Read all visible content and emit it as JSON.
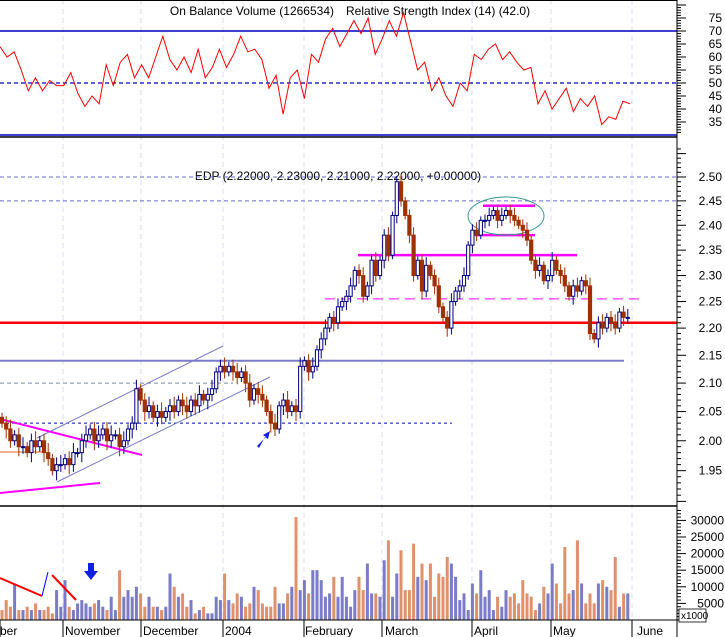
{
  "chart_data": [
    {
      "type": "line",
      "panel": "indicator",
      "titles": [
        "On Balance Volume (1266534)",
        "Relative Strength Index (14) (42.0)"
      ],
      "ylim": [
        30,
        80
      ],
      "yticks": [
        35,
        40,
        45,
        50,
        55,
        60,
        65,
        70,
        75
      ],
      "reference_lines": [
        {
          "value": 70,
          "style": "solid"
        },
        {
          "value": 50,
          "style": "dashed"
        },
        {
          "value": 30,
          "style": "solid"
        }
      ],
      "series": [
        {
          "color": "#ff0000",
          "values": [
            64,
            60,
            62,
            55,
            47,
            52,
            47,
            51,
            49,
            49,
            54,
            46,
            41,
            45,
            42,
            57,
            49,
            58,
            61,
            52,
            57,
            52,
            60,
            68,
            59,
            55,
            60,
            54,
            63,
            52,
            56,
            63,
            56,
            61,
            68,
            62,
            63,
            59,
            48,
            53,
            38,
            52,
            55,
            44,
            61,
            58,
            67,
            71,
            64,
            69,
            74,
            69,
            75,
            61,
            67,
            74,
            68,
            77,
            66,
            55,
            58,
            47,
            52,
            45,
            41,
            50,
            47,
            61,
            59,
            63,
            65,
            59,
            62,
            58,
            55,
            56,
            42,
            47,
            40,
            44,
            48,
            39,
            44,
            41,
            45,
            34,
            37,
            36,
            43,
            42
          ]
        }
      ]
    },
    {
      "type": "candlestick",
      "panel": "price",
      "title": "EDP (2.22000, 2.23000, 2.21000, 2.22000, +0.00000)",
      "y_scale": "log",
      "ylim": [
        1.9,
        2.55
      ],
      "yticks": [
        "1.95",
        "2.00",
        "2.05",
        "2.10",
        "2.15",
        "2.20",
        "2.25",
        "2.30",
        "2.35",
        "2.40",
        "2.45",
        "2.50"
      ],
      "grid": true,
      "up_color": "#000080",
      "down_color": "#a03000",
      "closes": [
        2.03,
        2.02,
        2.0,
        2.01,
        1.99,
        1.99,
        1.98,
        2.0,
        1.99,
        2.0,
        1.98,
        1.97,
        1.95,
        1.96,
        1.96,
        1.97,
        1.96,
        1.98,
        1.98,
        2.0,
        2.01,
        2.02,
        2.0,
        2.01,
        2.02,
        2.0,
        2.01,
        2.01,
        1.99,
        2.0,
        2.02,
        2.03,
        2.09,
        2.07,
        2.05,
        2.06,
        2.04,
        2.05,
        2.04,
        2.05,
        2.06,
        2.05,
        2.07,
        2.06,
        2.05,
        2.07,
        2.06,
        2.08,
        2.07,
        2.08,
        2.09,
        2.12,
        2.13,
        2.12,
        2.13,
        2.12,
        2.11,
        2.12,
        2.1,
        2.07,
        2.09,
        2.08,
        2.07,
        2.05,
        2.03,
        2.02,
        2.06,
        2.07,
        2.05,
        2.06,
        2.05,
        2.13,
        2.14,
        2.12,
        2.13,
        2.16,
        2.18,
        2.2,
        2.22,
        2.21,
        2.24,
        2.25,
        2.26,
        2.28,
        2.31,
        2.3,
        2.26,
        2.28,
        2.33,
        2.3,
        2.33,
        2.38,
        2.34,
        2.42,
        2.49,
        2.45,
        2.42,
        2.38,
        2.3,
        2.33,
        2.27,
        2.32,
        2.3,
        2.28,
        2.24,
        2.22,
        2.2,
        2.25,
        2.27,
        2.28,
        2.3,
        2.36,
        2.39,
        2.38,
        2.41,
        2.41,
        2.42,
        2.43,
        2.41,
        2.42,
        2.43,
        2.42,
        2.41,
        2.4,
        2.39,
        2.37,
        2.33,
        2.31,
        2.32,
        2.29,
        2.3,
        2.33,
        2.31,
        2.3,
        2.28,
        2.26,
        2.28,
        2.27,
        2.29,
        2.28,
        2.19,
        2.18,
        2.21,
        2.2,
        2.22,
        2.21,
        2.2,
        2.23,
        2.22,
        2.22
      ],
      "levels": [
        {
          "value": 2.5,
          "color": "#6a6ad0",
          "style": "dashed"
        },
        {
          "value": 2.45,
          "color": "#6a6ad0",
          "style": "dashed"
        },
        {
          "value": 2.21,
          "color": "#ff0000",
          "style": "solid"
        },
        {
          "value": 2.14,
          "color": "#7b7bc8",
          "style": "solid"
        },
        {
          "value": 2.34,
          "color": "#ff00ff",
          "style": "solid"
        },
        {
          "value": 2.255,
          "color": "#ff00ff",
          "style": "dashed"
        },
        {
          "value": 2.44,
          "color": "#ff00ff",
          "style": "solid"
        },
        {
          "value": 2.38,
          "color": "#ff00ff",
          "style": "solid"
        },
        {
          "value": 2.03,
          "color": "#0000c0",
          "style": "dotted"
        },
        {
          "value": 2.1,
          "color": "#7a8aa8",
          "style": "dashed"
        }
      ]
    },
    {
      "type": "bar",
      "panel": "volume",
      "ylim": [
        0,
        33000
      ],
      "yticks": [
        "5000",
        "10000",
        "15000",
        "20000",
        "25000",
        "30000"
      ],
      "unit_label": "x1000",
      "up_color": "#7b7bc8",
      "down_color": "#e0906a",
      "values": [
        3,
        6,
        4,
        11,
        3,
        3,
        4,
        3,
        5,
        3,
        3,
        4,
        2,
        9,
        4,
        12,
        4,
        3,
        5,
        6,
        5,
        4,
        5,
        6,
        4,
        3,
        7,
        3,
        15,
        7,
        9,
        7,
        10,
        8,
        4,
        7,
        4,
        4,
        3,
        4,
        14,
        10,
        7,
        8,
        4,
        6,
        2,
        3,
        4,
        2,
        2,
        7,
        6,
        14,
        6,
        5,
        8,
        7,
        4,
        5,
        10,
        9,
        5,
        4,
        4,
        10,
        5,
        5,
        8,
        10,
        31,
        9,
        12,
        8,
        15,
        15,
        12,
        7,
        8,
        13,
        7,
        13,
        7,
        4,
        9,
        13,
        9,
        17,
        8,
        8,
        7,
        18,
        24,
        7,
        14,
        21,
        9,
        9,
        23,
        13,
        17,
        12,
        17,
        7,
        14,
        13,
        19,
        17,
        13,
        6,
        8,
        3,
        11,
        8,
        15,
        7,
        9,
        3,
        7,
        4,
        9,
        7,
        8,
        5,
        12,
        8,
        7,
        3,
        5,
        10,
        8,
        17,
        11,
        5,
        22,
        8,
        9,
        24,
        11,
        5,
        8,
        5,
        11,
        12,
        10,
        9,
        19,
        4,
        8,
        8
      ]
    }
  ],
  "x_axis": {
    "labels": [
      "ber",
      "November",
      "December",
      "2004",
      "February",
      "March",
      "April",
      "May",
      "June"
    ]
  }
}
